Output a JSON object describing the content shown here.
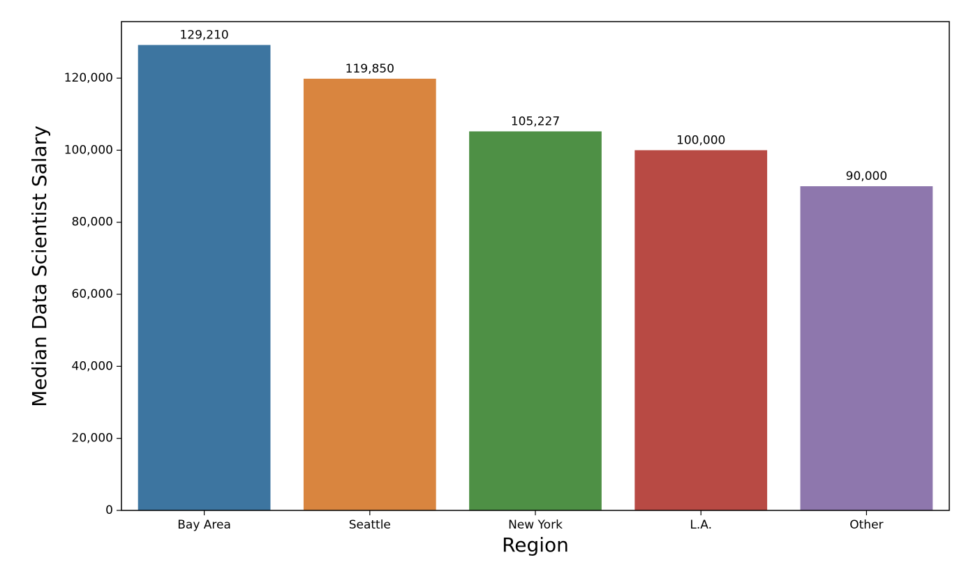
{
  "chart_data": {
    "type": "bar",
    "xlabel": "Region",
    "ylabel": "Median Data Scientist Salary",
    "categories": [
      "Bay Area",
      "Seattle",
      "New York",
      "L.A.",
      "Other"
    ],
    "values": [
      129210,
      119850,
      105227,
      100000,
      90000
    ],
    "value_labels": [
      "129,210",
      "119,850",
      "105,227",
      "100,000",
      "90,000"
    ],
    "colors": [
      "#3d75a0",
      "#d9853f",
      "#4e9045",
      "#b84a44",
      "#8e77ad"
    ],
    "ylim": [
      0,
      135700
    ],
    "yticks": [
      0,
      {
        "value": 20000,
        "label": "20,000"
      },
      {
        "value": 40000,
        "label": "40,000"
      },
      {
        "value": 60000,
        "label": "60,000"
      },
      {
        "value": 80000,
        "label": "80,000"
      },
      {
        "value": 100000,
        "label": "100,000"
      },
      {
        "value": 120000,
        "label": "120,000"
      }
    ],
    "grid": false
  }
}
